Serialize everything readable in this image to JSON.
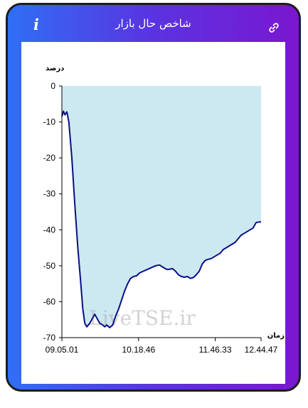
{
  "header": {
    "title": "شاخص حال بازار",
    "info_icon": "info-icon",
    "link_icon": "link-icon"
  },
  "colors": {
    "gradient_start": "#2f6ff5",
    "gradient_end": "#7a17d0",
    "line": "#0a0f86",
    "area_fill": "#cce9f1"
  },
  "chart_data": {
    "type": "area",
    "ylabel": "درصد",
    "xlabel": "زمان",
    "watermark": "LiveTSE.ir",
    "ylim": [
      -70,
      0
    ],
    "yticks": [
      0,
      -10,
      -20,
      -30,
      -40,
      -50,
      -60,
      -70
    ],
    "xtick_labels": [
      "09.05.01",
      "10.18.46",
      "11.46.33",
      "12.44.47"
    ],
    "xtick_positions": [
      0,
      0.385,
      0.77,
      1
    ],
    "grid": false,
    "series": [
      {
        "x": [
          0,
          0.008,
          0.015,
          0.025,
          0.035,
          0.05,
          0.065,
          0.08,
          0.095,
          0.105,
          0.115,
          0.125,
          0.14,
          0.155,
          0.165,
          0.175,
          0.19,
          0.205,
          0.215,
          0.225,
          0.24,
          0.255,
          0.27,
          0.285,
          0.3,
          0.315,
          0.33,
          0.345,
          0.36,
          0.375,
          0.39,
          0.41,
          0.43,
          0.45,
          0.47,
          0.49,
          0.51,
          0.525,
          0.54,
          0.555,
          0.57,
          0.585,
          0.6,
          0.615,
          0.63,
          0.645,
          0.66,
          0.675,
          0.69,
          0.705,
          0.72,
          0.735,
          0.75,
          0.765,
          0.78,
          0.795,
          0.81,
          0.825,
          0.84,
          0.855,
          0.87,
          0.885,
          0.9,
          0.915,
          0.93,
          0.945,
          0.96,
          0.975,
          0.99,
          1
        ],
        "values": [
          -8.5,
          -7.0,
          -8.0,
          -7.2,
          -10.0,
          -20.0,
          -33.0,
          -45.0,
          -55.0,
          -62.0,
          -66.0,
          -67.0,
          -66.0,
          -64.5,
          -63.5,
          -64.5,
          -66.0,
          -66.5,
          -67.0,
          -66.5,
          -67.2,
          -66.5,
          -64.0,
          -62.0,
          -59.5,
          -57.0,
          -55.0,
          -53.5,
          -53.0,
          -52.8,
          -52.0,
          -51.5,
          -51.0,
          -50.5,
          -50.0,
          -49.8,
          -50.5,
          -51.0,
          -51.0,
          -50.8,
          -51.5,
          -52.5,
          -53.0,
          -53.2,
          -53.0,
          -53.5,
          -53.3,
          -52.5,
          -51.5,
          -49.5,
          -48.5,
          -48.2,
          -48.0,
          -47.5,
          -47.0,
          -46.5,
          -45.5,
          -45.0,
          -44.5,
          -44.0,
          -43.5,
          -42.5,
          -41.5,
          -41.0,
          -40.5,
          -40.0,
          -39.5,
          -38.0,
          -37.8,
          -37.8
        ]
      }
    ]
  }
}
